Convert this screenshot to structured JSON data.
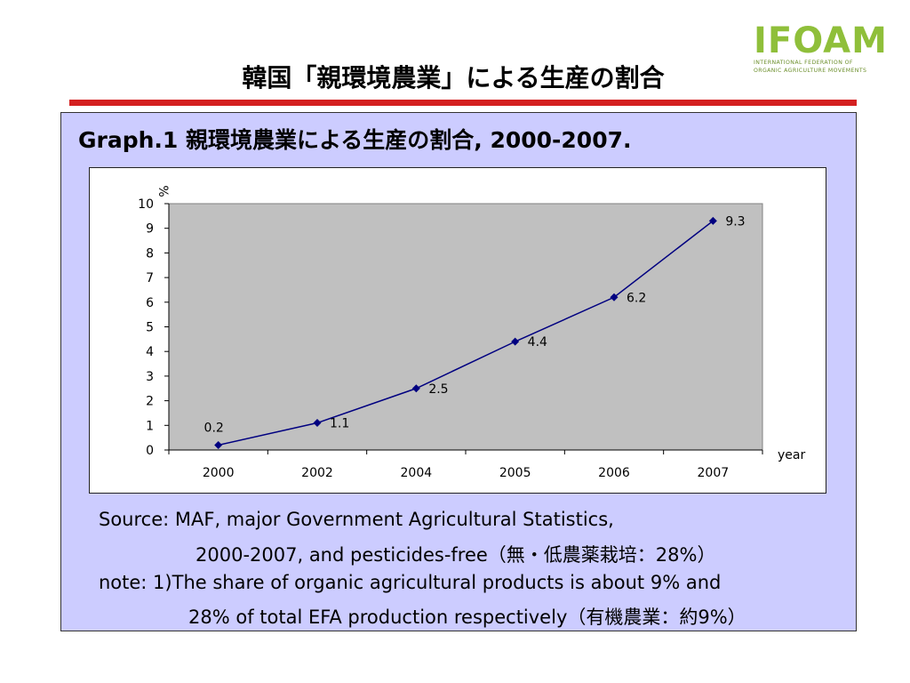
{
  "slide": {
    "title": "韓国「親環境農業」による生産の割合"
  },
  "logo": {
    "mark": "IFOAM",
    "line1": "INTERNATIONAL FEDERATION OF",
    "line2": "ORGANIC AGRICULTURE MOVEMENTS"
  },
  "graph": {
    "title": "Graph.1 親環境農業による生産の割合, 2000-2007."
  },
  "chart_data": {
    "type": "line",
    "title": "",
    "ylabel": "%",
    "xlabel": "year",
    "categories": [
      "2000",
      "2002",
      "2004",
      "2005",
      "2006",
      "2007"
    ],
    "values": [
      0.2,
      1.1,
      2.5,
      4.4,
      6.2,
      9.3
    ],
    "data_labels": [
      "0.2",
      "1.1",
      "2.5",
      "4.4",
      "6.2",
      "9.3"
    ],
    "ylim": [
      0,
      10
    ],
    "yticks": [
      "0",
      "1",
      "2",
      "3",
      "4",
      "5",
      "6",
      "7",
      "8",
      "9",
      "10"
    ],
    "grid": false,
    "plot_background": "#c0c0c0",
    "series_color": "#000080",
    "marker": "diamond"
  },
  "source": {
    "line1": "Source: MAF, major Government Agricultural Statistics,",
    "line2": "2000-2007, and pesticides-free（無・低農薬栽培：28%）",
    "line3": "note: 1)The share of organic agricultural products is about 9% and",
    "line4": "28% of total EFA production respectively（有機農業：約9%）"
  }
}
